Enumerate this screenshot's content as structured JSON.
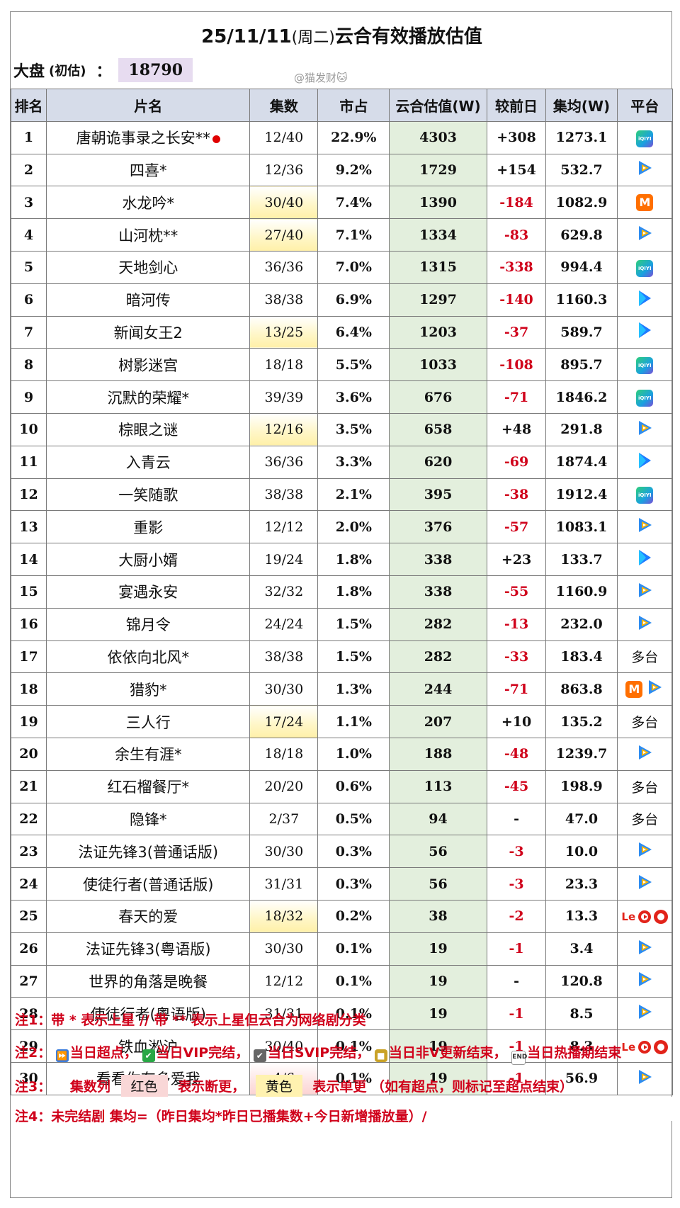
{
  "title": {
    "date": "25/11/11",
    "weekday": "(周二)",
    "text": "云合有效播放估值"
  },
  "summary": {
    "label": "大盘",
    "sub": "(初估)",
    "colon": "：",
    "value": "18790"
  },
  "watermark": "@猫发财🐱",
  "columns": [
    "排名",
    "片名",
    "集数",
    "市占",
    "云合估值(W)",
    "较前日",
    "集均(W)",
    "平台"
  ],
  "rows": [
    {
      "rank": "1",
      "name": "唐朝诡事录之长安**",
      "ep": "12/40",
      "ep_hl": "",
      "share": "22.9%",
      "est": "4303",
      "delta": "+308",
      "avg": "1273.1",
      "platform": [
        "iqiyi"
      ],
      "dot": true
    },
    {
      "rank": "2",
      "name": "四喜*",
      "ep": "12/36",
      "ep_hl": "",
      "share": "9.2%",
      "est": "1729",
      "delta": "+154",
      "avg": "532.7",
      "platform": [
        "tencent"
      ]
    },
    {
      "rank": "3",
      "name": "水龙吟*",
      "ep": "30/40",
      "ep_hl": "yellow",
      "share": "7.4%",
      "est": "1390",
      "delta": "-184",
      "avg": "1082.9",
      "platform": [
        "mango"
      ]
    },
    {
      "rank": "4",
      "name": "山河枕**",
      "ep": "27/40",
      "ep_hl": "yellow",
      "share": "7.1%",
      "est": "1334",
      "delta": "-83",
      "avg": "629.8",
      "platform": [
        "tencent"
      ]
    },
    {
      "rank": "5",
      "name": "天地剑心",
      "ep": "36/36",
      "ep_hl": "",
      "share": "7.0%",
      "est": "1315",
      "delta": "-338",
      "avg": "994.4",
      "platform": [
        "iqiyi"
      ]
    },
    {
      "rank": "6",
      "name": "暗河传",
      "ep": "38/38",
      "ep_hl": "",
      "share": "6.9%",
      "est": "1297",
      "delta": "-140",
      "avg": "1160.3",
      "platform": [
        "youku"
      ]
    },
    {
      "rank": "7",
      "name": "新闻女王2",
      "ep": "13/25",
      "ep_hl": "yellow",
      "share": "6.4%",
      "est": "1203",
      "delta": "-37",
      "avg": "589.7",
      "platform": [
        "youku"
      ]
    },
    {
      "rank": "8",
      "name": "树影迷宫",
      "ep": "18/18",
      "ep_hl": "",
      "share": "5.5%",
      "est": "1033",
      "delta": "-108",
      "avg": "895.7",
      "platform": [
        "iqiyi"
      ]
    },
    {
      "rank": "9",
      "name": "沉默的荣耀*",
      "ep": "39/39",
      "ep_hl": "",
      "share": "3.6%",
      "est": "676",
      "delta": "-71",
      "avg": "1846.2",
      "platform": [
        "iqiyi"
      ]
    },
    {
      "rank": "10",
      "name": "棕眼之谜",
      "ep": "12/16",
      "ep_hl": "yellow",
      "share": "3.5%",
      "est": "658",
      "delta": "+48",
      "avg": "291.8",
      "platform": [
        "tencent"
      ]
    },
    {
      "rank": "11",
      "name": "入青云",
      "ep": "36/36",
      "ep_hl": "",
      "share": "3.3%",
      "est": "620",
      "delta": "-69",
      "avg": "1874.4",
      "platform": [
        "youku"
      ]
    },
    {
      "rank": "12",
      "name": "一笑随歌",
      "ep": "38/38",
      "ep_hl": "",
      "share": "2.1%",
      "est": "395",
      "delta": "-38",
      "avg": "1912.4",
      "platform": [
        "iqiyi"
      ]
    },
    {
      "rank": "13",
      "name": "重影",
      "ep": "12/12",
      "ep_hl": "",
      "share": "2.0%",
      "est": "376",
      "delta": "-57",
      "avg": "1083.1",
      "platform": [
        "tencent"
      ]
    },
    {
      "rank": "14",
      "name": "大厨小婿",
      "ep": "19/24",
      "ep_hl": "",
      "share": "1.8%",
      "est": "338",
      "delta": "+23",
      "avg": "133.7",
      "platform": [
        "youku"
      ]
    },
    {
      "rank": "15",
      "name": "宴遇永安",
      "ep": "32/32",
      "ep_hl": "",
      "share": "1.8%",
      "est": "338",
      "delta": "-55",
      "avg": "1160.9",
      "platform": [
        "tencent"
      ]
    },
    {
      "rank": "16",
      "name": "锦月令",
      "ep": "24/24",
      "ep_hl": "",
      "share": "1.5%",
      "est": "282",
      "delta": "-13",
      "avg": "232.0",
      "platform": [
        "tencent"
      ]
    },
    {
      "rank": "17",
      "name": "依依向北风*",
      "ep": "38/38",
      "ep_hl": "",
      "share": "1.5%",
      "est": "282",
      "delta": "-33",
      "avg": "183.4",
      "platform": [
        "multi"
      ]
    },
    {
      "rank": "18",
      "name": "猎豹*",
      "ep": "30/30",
      "ep_hl": "",
      "share": "1.3%",
      "est": "244",
      "delta": "-71",
      "avg": "863.8",
      "platform": [
        "mango",
        "tencent"
      ]
    },
    {
      "rank": "19",
      "name": "三人行",
      "ep": "17/24",
      "ep_hl": "yellow",
      "share": "1.1%",
      "est": "207",
      "delta": "+10",
      "avg": "135.2",
      "platform": [
        "multi"
      ]
    },
    {
      "rank": "20",
      "name": "余生有涯*",
      "ep": "18/18",
      "ep_hl": "",
      "share": "1.0%",
      "est": "188",
      "delta": "-48",
      "avg": "1239.7",
      "platform": [
        "tencent"
      ]
    },
    {
      "rank": "21",
      "name": "红石榴餐厅*",
      "ep": "20/20",
      "ep_hl": "",
      "share": "0.6%",
      "est": "113",
      "delta": "-45",
      "avg": "198.9",
      "platform": [
        "multi"
      ]
    },
    {
      "rank": "22",
      "name": "隐锋*",
      "ep": "2/37",
      "ep_hl": "",
      "share": "0.5%",
      "est": "94",
      "delta": "-",
      "avg": "47.0",
      "platform": [
        "multi"
      ]
    },
    {
      "rank": "23",
      "name": "法证先锋3(普通话版)",
      "ep": "30/30",
      "ep_hl": "",
      "share": "0.3%",
      "est": "56",
      "delta": "-3",
      "avg": "10.0",
      "platform": [
        "tencent"
      ]
    },
    {
      "rank": "24",
      "name": "使徒行者(普通话版)",
      "ep": "31/31",
      "ep_hl": "",
      "share": "0.3%",
      "est": "56",
      "delta": "-3",
      "avg": "23.3",
      "platform": [
        "tencent"
      ]
    },
    {
      "rank": "25",
      "name": "春天的爱",
      "ep": "18/32",
      "ep_hl": "yellow",
      "share": "0.2%",
      "est": "38",
      "delta": "-2",
      "avg": "13.3",
      "platform": [
        "le",
        "ring",
        "red"
      ]
    },
    {
      "rank": "26",
      "name": "法证先锋3(粤语版)",
      "ep": "30/30",
      "ep_hl": "",
      "share": "0.1%",
      "est": "19",
      "delta": "-1",
      "avg": "3.4",
      "platform": [
        "tencent"
      ]
    },
    {
      "rank": "27",
      "name": "世界的角落是晚餐",
      "ep": "12/12",
      "ep_hl": "",
      "share": "0.1%",
      "est": "19",
      "delta": "-",
      "avg": "120.8",
      "platform": [
        "tencent"
      ]
    },
    {
      "rank": "28",
      "name": "使徒行者(粤语版)",
      "ep": "31/31",
      "ep_hl": "",
      "share": "0.1%",
      "est": "19",
      "delta": "-1",
      "avg": "8.5",
      "platform": [
        "tencent"
      ]
    },
    {
      "rank": "29",
      "name": "铁血淞沪",
      "ep": "30/40",
      "ep_hl": "",
      "share": "0.1%",
      "est": "19",
      "delta": "-1",
      "avg": "8.3",
      "platform": [
        "le",
        "ring",
        "red"
      ]
    },
    {
      "rank": "30",
      "name": "看看你有多爱我",
      "ep": "4/6",
      "ep_hl": "red",
      "share": "0.1%",
      "est": "19",
      "delta": "-1",
      "avg": "56.9",
      "platform": [
        "tencent"
      ]
    }
  ],
  "platform_labels": {
    "multi": "多台",
    "iqiyi": "iQIYI",
    "mango": "M",
    "le": "Le"
  },
  "notes": {
    "n1": "注1：带 * 表示上星 // 带 ** 表示上星但云合为网络剧分类",
    "n2_prefix": "注2：",
    "n2_items": [
      "当日超点，",
      "当日VIP完结，",
      "当日SVIP完结，",
      "当日非V更新结束，",
      "当日热播期结束"
    ],
    "n2_end_icon": "END",
    "n3_prefix": "注3：",
    "n3_col": "集数列",
    "n3_red": "红色",
    "n3_red_text": "表示断更，",
    "n3_yellow": "黄色",
    "n3_yellow_text": "表示单更 （如有超点，则标记至超点结束）",
    "n4": "注4：未完结剧 集均=（昨日集均*昨日已播集数+今日新增播放量）/"
  },
  "colors": {
    "header_bg": "#d6dce9",
    "est_bg": "#e3efdd",
    "negative": "#d0021b",
    "note": "#d0021b",
    "summary_bg": "#e7dcf0"
  }
}
